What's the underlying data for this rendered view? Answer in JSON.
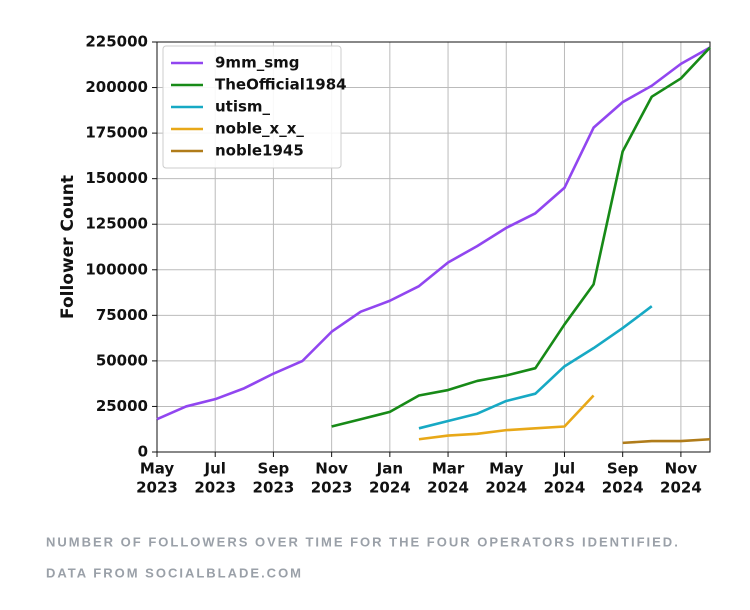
{
  "chart_data": {
    "type": "line",
    "ylabel": "Follower Count",
    "x": [
      "2023-05",
      "2023-06",
      "2023-07",
      "2023-08",
      "2023-09",
      "2023-10",
      "2023-11",
      "2023-12",
      "2024-01",
      "2024-02",
      "2024-03",
      "2024-04",
      "2024-05",
      "2024-06",
      "2024-07",
      "2024-08",
      "2024-09",
      "2024-10",
      "2024-11",
      "2024-12"
    ],
    "series": [
      {
        "name": "9mm_smg",
        "color": "#9146f0",
        "values": [
          18000,
          25000,
          29000,
          35000,
          43000,
          50000,
          66000,
          77000,
          83000,
          91000,
          104000,
          113000,
          123000,
          131000,
          145000,
          178000,
          192000,
          201000,
          213000,
          222000
        ]
      },
      {
        "name": "TheOfficial1984",
        "color": "#178a17",
        "values": [
          null,
          null,
          null,
          null,
          null,
          null,
          14000,
          18000,
          22000,
          31000,
          34000,
          39000,
          42000,
          46000,
          70000,
          92000,
          165000,
          195000,
          205000,
          222000
        ]
      },
      {
        "name": "utism_",
        "color": "#17a9c4",
        "values": [
          null,
          null,
          null,
          null,
          null,
          null,
          null,
          null,
          null,
          13000,
          17000,
          21000,
          28000,
          32000,
          47000,
          57000,
          68000,
          80000,
          null,
          null
        ]
      },
      {
        "name": "noble_x_x_",
        "color": "#e8a818",
        "values": [
          null,
          null,
          null,
          null,
          null,
          null,
          null,
          null,
          null,
          7000,
          9000,
          10000,
          12000,
          13000,
          14000,
          31000,
          null,
          null,
          null,
          null
        ]
      },
      {
        "name": "noble1945",
        "color": "#b07c1a",
        "values": [
          null,
          null,
          null,
          null,
          null,
          null,
          null,
          null,
          null,
          null,
          null,
          null,
          null,
          null,
          null,
          null,
          5000,
          6000,
          6000,
          7000
        ]
      }
    ],
    "xlim": [
      "2023-05",
      "2024-12"
    ],
    "xticks": [
      {
        "value": "2023-05",
        "label": [
          "May",
          "2023"
        ]
      },
      {
        "value": "2023-07",
        "label": [
          "Jul",
          "2023"
        ]
      },
      {
        "value": "2023-09",
        "label": [
          "Sep",
          "2023"
        ]
      },
      {
        "value": "2023-11",
        "label": [
          "Nov",
          "2023"
        ]
      },
      {
        "value": "2024-01",
        "label": [
          "Jan",
          "2024"
        ]
      },
      {
        "value": "2024-03",
        "label": [
          "Mar",
          "2024"
        ]
      },
      {
        "value": "2024-05",
        "label": [
          "May",
          "2024"
        ]
      },
      {
        "value": "2024-07",
        "label": [
          "Jul",
          "2024"
        ]
      },
      {
        "value": "2024-09",
        "label": [
          "Sep",
          "2024"
        ]
      },
      {
        "value": "2024-11",
        "label": [
          "Nov",
          "2024"
        ]
      }
    ],
    "ylim": [
      0,
      225000
    ],
    "yticks": [
      0,
      25000,
      50000,
      75000,
      100000,
      125000,
      150000,
      175000,
      200000,
      225000
    ],
    "grid": true,
    "legend": "upper left",
    "caption": [
      "NUMBER OF FOLLOWERS OVER TIME FOR THE FOUR OPERATORS IDENTIFIED.",
      "DATA FROM SOCIALBLADE.COM"
    ]
  }
}
